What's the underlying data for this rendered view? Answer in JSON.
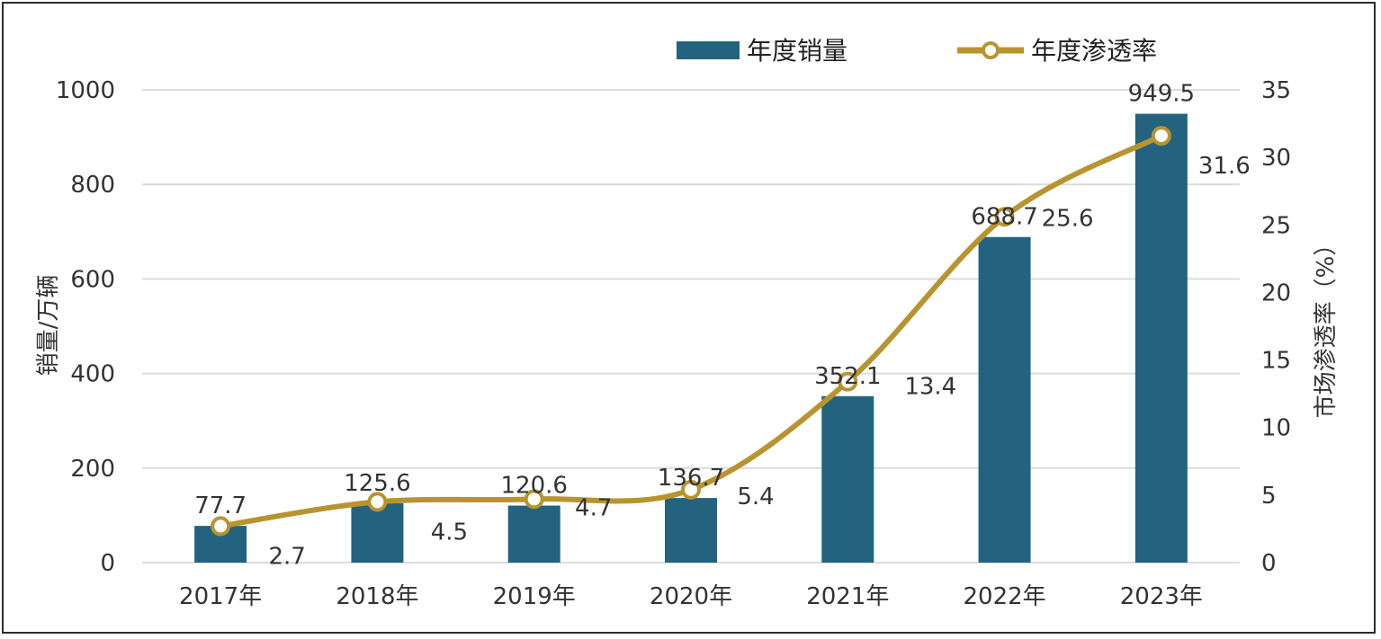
{
  "chart_data": {
    "type": "bar",
    "categories": [
      "2017年",
      "2018年",
      "2019年",
      "2020年",
      "2021年",
      "2022年",
      "2023年"
    ],
    "series": [
      {
        "name": "年度销量",
        "type": "bar",
        "axis": "left",
        "values": [
          77.7,
          125.6,
          120.6,
          136.7,
          352.1,
          688.7,
          949.5
        ]
      },
      {
        "name": "年度渗透率",
        "type": "line",
        "axis": "right",
        "values": [
          2.7,
          4.5,
          4.7,
          5.4,
          13.4,
          25.6,
          31.6
        ]
      }
    ],
    "bar_labels": [
      "77.7",
      "125.6",
      "120.6",
      "136.7",
      "352.1",
      "688.7",
      "949.5"
    ],
    "line_labels": [
      "2.7",
      "4.5",
      "4.7",
      "5.4",
      "13.4",
      "25.6",
      "31.6"
    ],
    "ylabel": "销量/万辆",
    "y2label": "市场渗透率（%）",
    "ylim": [
      0,
      1000
    ],
    "y2lim": [
      0,
      35
    ],
    "yticks": [
      "0",
      "200",
      "400",
      "600",
      "800",
      "1000"
    ],
    "y2ticks": [
      "0",
      "5",
      "10",
      "15",
      "20",
      "25",
      "30",
      "35"
    ],
    "grid": true,
    "legend_position": "top",
    "colors": {
      "bar": "#24637f",
      "line": "#b8942f",
      "grid": "#dcdcdc"
    }
  }
}
